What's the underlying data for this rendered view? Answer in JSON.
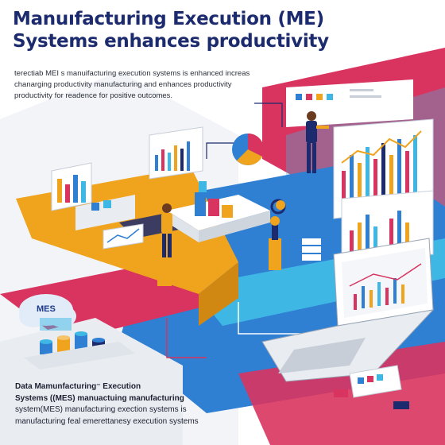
{
  "headline": {
    "line1": "Manuıfacturing Execution (ME)",
    "line2": "Systems enhances productivity"
  },
  "intro": {
    "line1": "terectiab MEI s manuifacturing execution systems is enhanced increas",
    "line2": "chanarging productivity manufacturing and enhances productivity",
    "line3": "productivity for readence for positive outcomes."
  },
  "badge": {
    "label": "MES"
  },
  "caption": {
    "line1": "Data Mamunfacturing⁻ Execution",
    "line2": "Systems ((MES) manuactuing manufacturing",
    "line3": "system(MES) manufacturing exection systems is",
    "line4": "manufacturing feal emerettanesy execution systems"
  },
  "colors": {
    "navy": "#1c2a6e",
    "magenta": "#d9345f",
    "orange": "#f0a41e",
    "blue": "#2f7fd3",
    "cyan": "#3fb7e4",
    "light_gray": "#e9edf2"
  },
  "icons": [
    "pie-chart-icon",
    "bar-chart-icon",
    "line-chart-icon",
    "laptop-icon",
    "cloud-icon",
    "gear-icon",
    "robot-arm-icon",
    "worker-figure-icon",
    "database-icon"
  ]
}
